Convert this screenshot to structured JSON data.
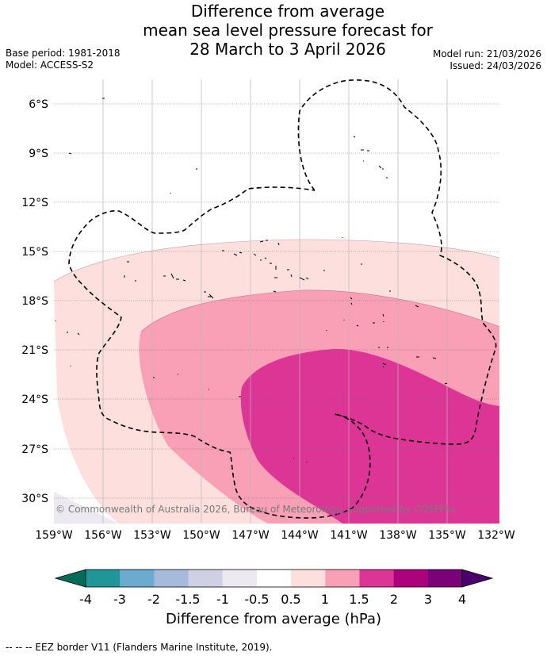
{
  "title": {
    "line1": "Difference from average",
    "line2": "mean sea level pressure forecast for",
    "line3": "28 March to 3 April 2026"
  },
  "meta": {
    "base_period": "Base period: 1981-2018",
    "model": "Model: ACCESS-S2",
    "model_run": "Model run: 21/03/2026",
    "issued": "Issued: 24/03/2026"
  },
  "map": {
    "lat_labels": [
      "6°S",
      "9°S",
      "12°S",
      "15°S",
      "18°S",
      "21°S",
      "24°S",
      "27°S",
      "30°S"
    ],
    "lon_labels": [
      "159°W",
      "156°W",
      "153°W",
      "150°W",
      "147°W",
      "144°W",
      "141°W",
      "138°W",
      "135°W",
      "132°W"
    ],
    "copyright": "© Commonwealth of Australia 2026, Bureau of Meteorology, supported by COSPPac"
  },
  "colorbar": {
    "title": "Difference from average (hPa)",
    "tick_labels": [
      "-4",
      "-3",
      "-2",
      "-1.5",
      "-1",
      "-0.5",
      "0.5",
      "1",
      "1.5",
      "2",
      "3",
      "4"
    ],
    "colors": [
      "#1f9698",
      "#6aabcf",
      "#a6bbdc",
      "#cfd0e4",
      "#ede9f0",
      "#ffffff",
      "#fde0de",
      "#f9a0b6",
      "#dd3596",
      "#ae017e",
      "#7a0177"
    ],
    "low_extend_color": "#016c59",
    "high_extend_color": "#49006a"
  },
  "legend": {
    "eez": "--  --  -- EEZ border V11 (Flanders Marine Institute, 2019)."
  }
}
